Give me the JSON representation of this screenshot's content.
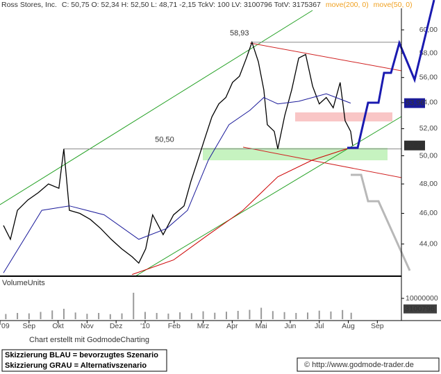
{
  "header": {
    "quote": "C: 50,75 O: 52,34 H: 52,50 L: 48,71 -2,15 TckV: 100 LV: 3100796 TotV: 3175367"
  },
  "chart_data": [
    {
      "type": "line",
      "title": "Ross Stores, Inc.",
      "log_scale": true,
      "xlim": [
        0,
        13.83
      ],
      "ylim": [
        42,
        61.9
      ],
      "xticks": [
        {
          "value": 0,
          "label": "'09"
        },
        {
          "value": 1,
          "label": "Sep"
        },
        {
          "value": 2,
          "label": "Okt"
        },
        {
          "value": 3,
          "label": "Nov"
        },
        {
          "value": 4,
          "label": "Dez"
        },
        {
          "value": 5,
          "label": "'10"
        },
        {
          "value": 6,
          "label": "Feb"
        },
        {
          "value": 7,
          "label": "Mrz"
        },
        {
          "value": 8,
          "label": "Apr"
        },
        {
          "value": 9,
          "label": "Mai"
        },
        {
          "value": 10,
          "label": "Jun"
        },
        {
          "value": 11,
          "label": "Jul"
        },
        {
          "value": 12,
          "label": "Aug"
        },
        {
          "value": 13,
          "label": "Sep"
        }
      ],
      "yticks": [
        {
          "value": 44,
          "label": "44,00"
        },
        {
          "value": 46,
          "label": "46,00"
        },
        {
          "value": 48,
          "label": "48,00"
        },
        {
          "value": 50,
          "label": "50,00"
        },
        {
          "value": 52,
          "label": "52,00"
        },
        {
          "value": 54,
          "label": "54,00"
        },
        {
          "value": 56,
          "label": "56,00"
        },
        {
          "value": 58,
          "label": "58,00"
        },
        {
          "value": 60,
          "label": "60,00"
        }
      ],
      "series": [
        {
          "color": "#000000",
          "x": [
            0.12,
            0.36,
            0.6,
            0.96,
            1.32,
            1.67,
            2.03,
            2.2,
            2.39,
            2.75,
            3.11,
            3.47,
            3.83,
            4.19,
            4.55,
            4.78,
            5.02,
            5.26,
            5.62,
            5.98,
            6.34,
            6.58,
            6.82,
            7.06,
            7.3,
            7.54,
            7.78,
            8.01,
            8.25,
            8.49,
            8.68,
            8.9,
            9.09,
            9.21,
            9.45,
            9.57,
            9.81,
            10.05,
            10.29,
            10.53,
            10.77,
            11.0,
            11.24,
            11.48,
            11.72,
            11.89,
            12.08,
            12.15
          ],
          "values": [
            45.2,
            44.3,
            46.2,
            46.9,
            47.4,
            48.0,
            47.7,
            50.5,
            46.2,
            46.0,
            45.6,
            45.0,
            44.3,
            43.7,
            43.2,
            42.8,
            43.7,
            45.9,
            44.6,
            45.9,
            46.5,
            48.2,
            49.7,
            51.3,
            52.9,
            53.9,
            54.4,
            55.6,
            56.1,
            57.6,
            58.93,
            57.3,
            55.0,
            52.3,
            51.8,
            50.5,
            53.0,
            55.0,
            57.6,
            57.9,
            55.3,
            53.9,
            54.4,
            53.6,
            55.6,
            52.6,
            51.8,
            50.75
          ],
          "value_labels": [
            null,
            null,
            null,
            null,
            null,
            null,
            null,
            null,
            null,
            null,
            null,
            null,
            null,
            null,
            null,
            null,
            null,
            null,
            null,
            null,
            null,
            null,
            null,
            null,
            null,
            null,
            null,
            null,
            null,
            null,
            null,
            null,
            null,
            null,
            null,
            null,
            null,
            null,
            null,
            null,
            null,
            null,
            null,
            null,
            null,
            null,
            null,
            "50,75"
          ]
        },
        {
          "name": "move(200, 0)",
          "color": "#cc0000",
          "x": [
            4.55,
            5.98,
            7.18,
            8.37,
            9.57,
            10.77,
            12.08
          ],
          "values": [
            42.1,
            43.0,
            44.6,
            46.2,
            48.5,
            49.7,
            50.6
          ]
        },
        {
          "name": "move(50, 0)",
          "color": "#1a1a9a",
          "x": [
            0.12,
            1.44,
            2.39,
            3.59,
            4.78,
            5.74,
            6.46,
            7.18,
            7.89,
            8.61,
            9.09,
            9.57,
            10.29,
            11.24,
            12.08
          ],
          "values": [
            42.2,
            46.2,
            46.5,
            45.9,
            44.3,
            45.0,
            46.2,
            49.7,
            52.3,
            53.4,
            54.4,
            53.9,
            54.1,
            54.7,
            53.96
          ],
          "value_labels": [
            null,
            null,
            null,
            null,
            null,
            null,
            null,
            null,
            null,
            null,
            null,
            null,
            null,
            null,
            "53,96"
          ]
        }
      ],
      "annotations": [
        {
          "text": "58,93",
          "value": 58.93,
          "x": 8.68
        },
        {
          "text": "50,50",
          "value": 50.5,
          "x": 2.2
        }
      ]
    },
    {
      "type": "bar",
      "title": "VolumeUnits",
      "color": "#999999",
      "ylim": [
        0,
        20000000
      ],
      "yticks": [
        10000000
      ],
      "x": [
        0.2,
        0.6,
        1.0,
        1.4,
        1.8,
        2.2,
        2.6,
        3.0,
        3.4,
        3.8,
        4.2,
        4.6,
        5.0,
        5.4,
        5.8,
        6.2,
        6.6,
        7.0,
        7.4,
        7.8,
        8.2,
        8.6,
        9.0,
        9.4,
        9.8,
        10.2,
        10.6,
        11.0,
        11.4,
        11.8,
        12.1
      ],
      "values": [
        2500000,
        3000000,
        2800000,
        3500000,
        4200000,
        5000000,
        3200000,
        2600000,
        3000000,
        2400000,
        2800000,
        12700000,
        3500000,
        3000000,
        2700000,
        3300000,
        2900000,
        3800000,
        3100000,
        3600000,
        4000000,
        4500000,
        5500000,
        3900000,
        3400000,
        3000000,
        3200000,
        4100000,
        3700000,
        4400000,
        3100796
      ]
    }
  ],
  "footer": {
    "credit": "Chart erstellt mit GodmodeCharting",
    "legend": [
      "Skizzierung BLAU = bevorzugtes Szenario",
      "Skizzierung GRAU = Alternativszenario"
    ],
    "url": "© http://www.godmode-trader.de"
  }
}
